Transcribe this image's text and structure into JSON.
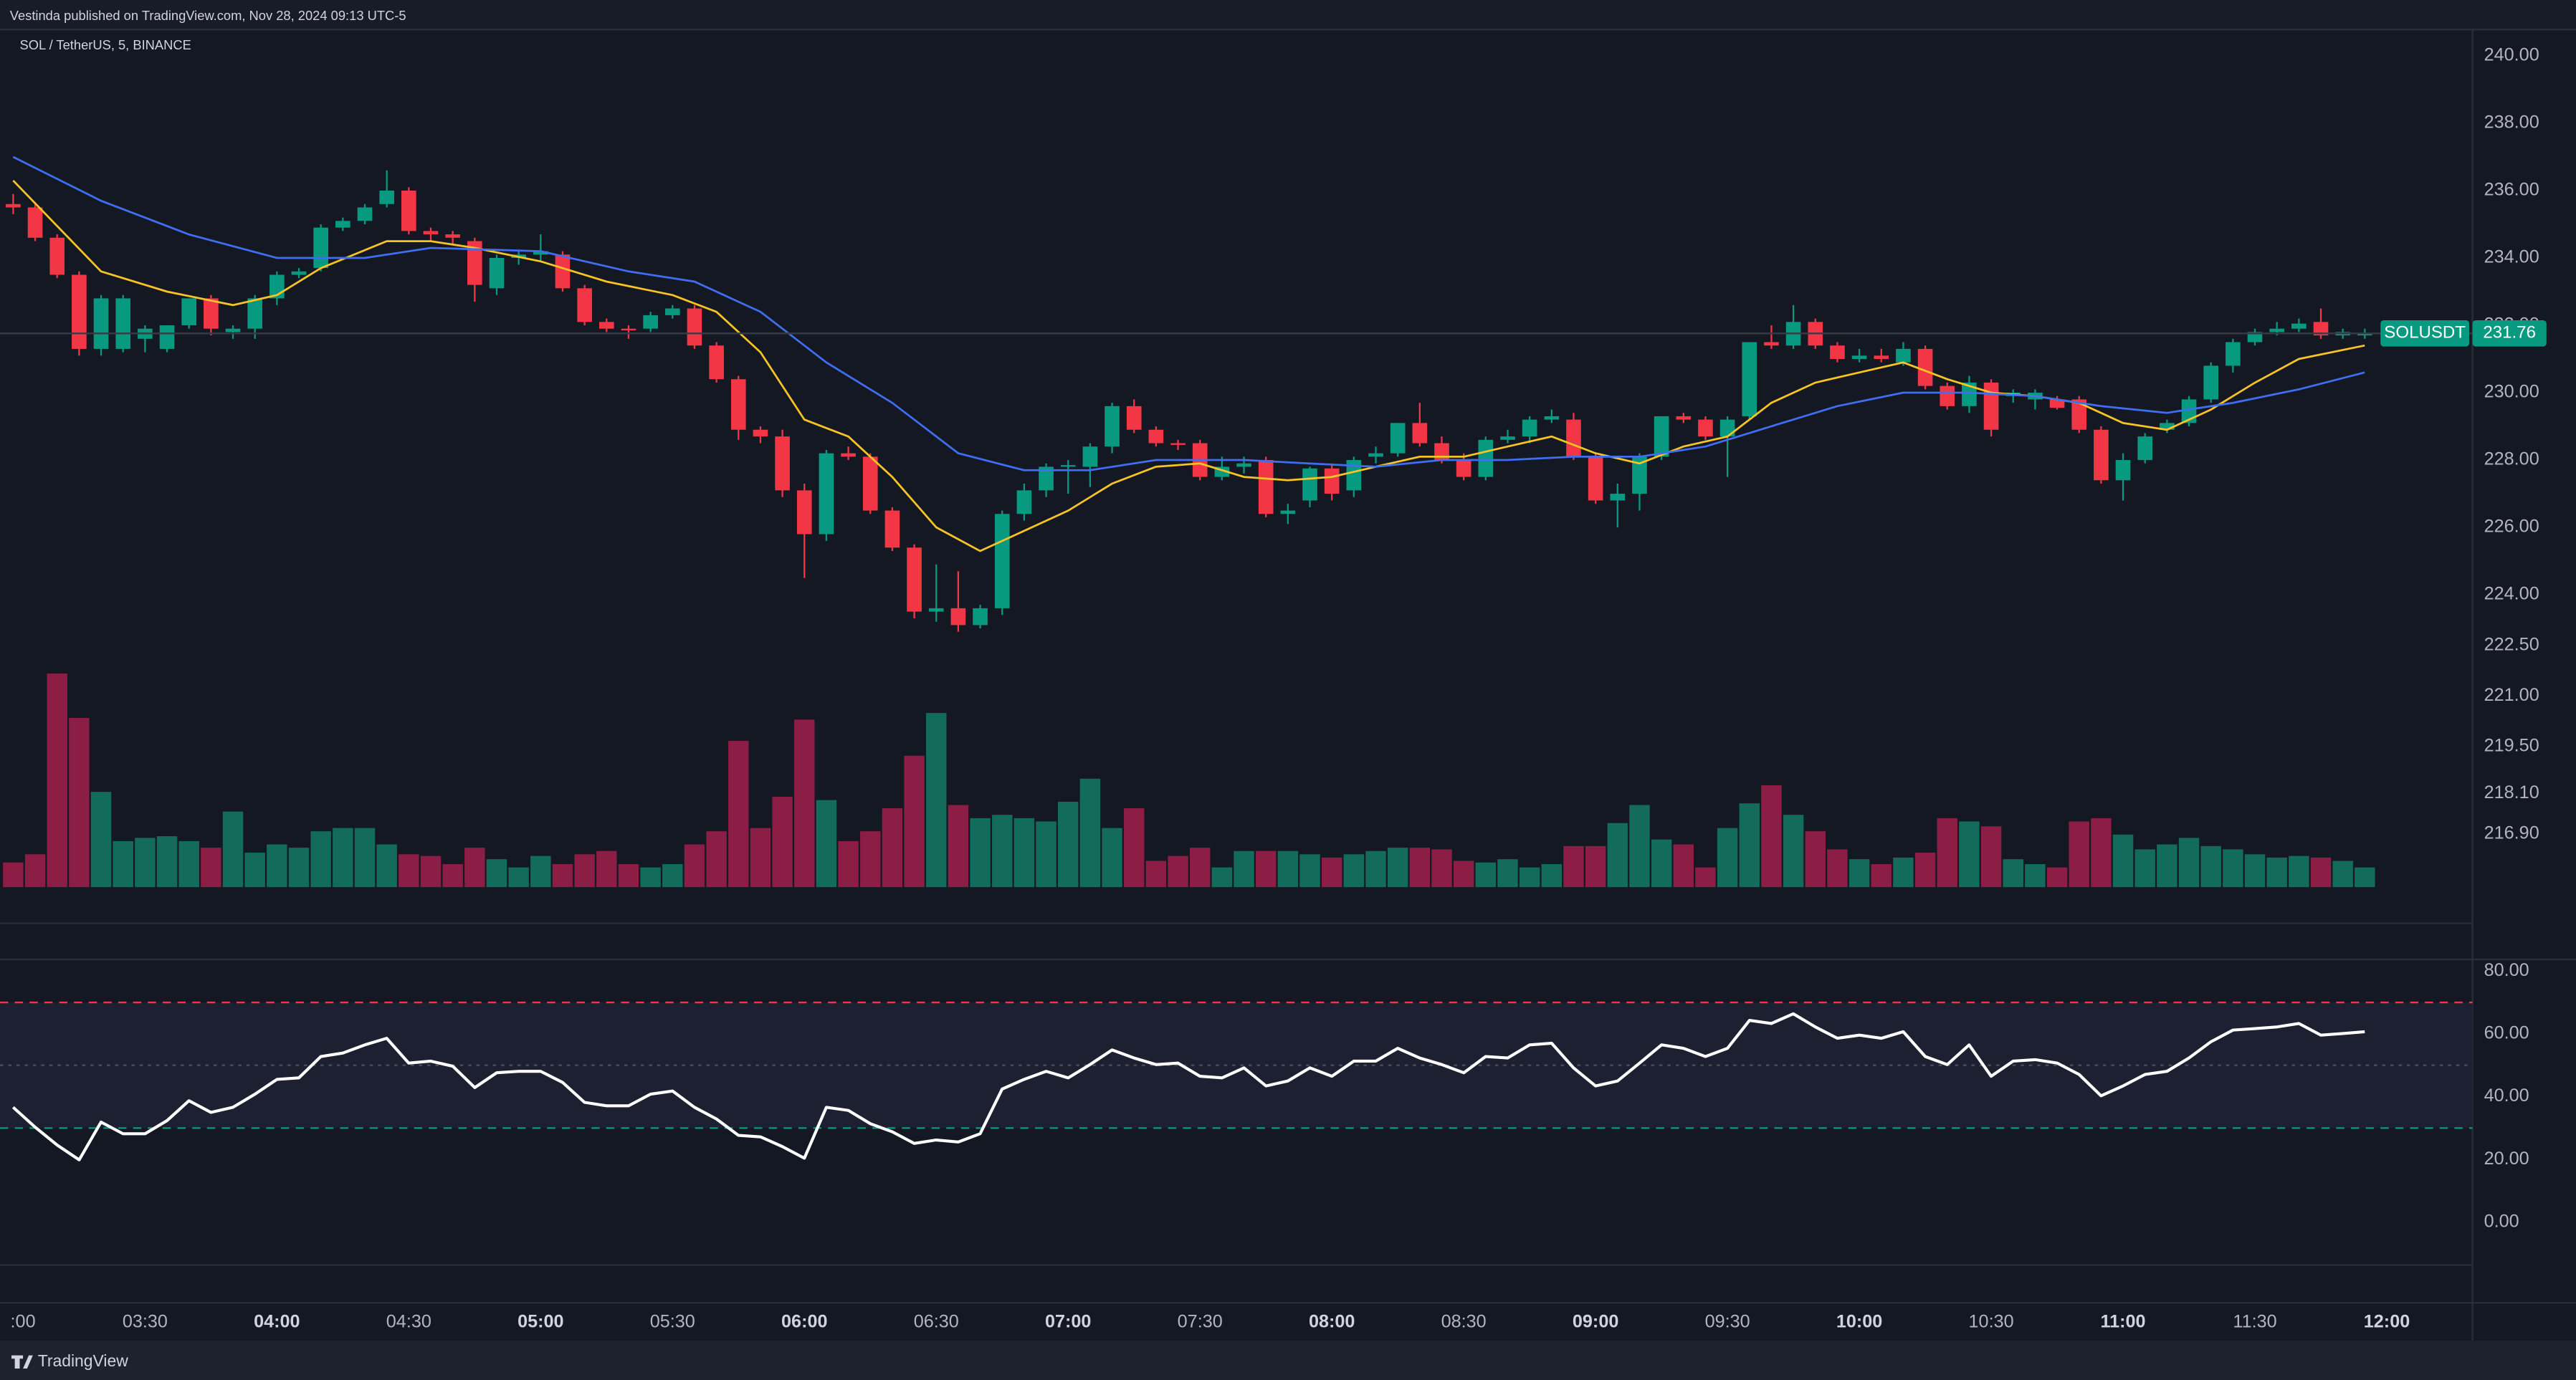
{
  "header": {
    "text": "Vestinda published on TradingView.com, Nov 28, 2024 09:13 UTC-5"
  },
  "footer": {
    "brand": "TradingView"
  },
  "chart_data": [
    {
      "type": "candlestick",
      "title": "SOL / TetherUS, 5, BINANCE",
      "symbol": "SOLUSDT",
      "last_price": 231.76,
      "up_color": "#089981",
      "down_color": "#f23645",
      "volume_up_color": "#136b5b",
      "volume_down_color": "#8c1d45",
      "ylim": [
        215.32,
        240.78
      ],
      "yticks": [
        {
          "value": 240,
          "label": "240.00"
        },
        {
          "value": 238,
          "label": "238.00"
        },
        {
          "value": 236,
          "label": "236.00"
        },
        {
          "value": 234,
          "label": "234.00"
        },
        {
          "value": 232,
          "label": "232.00"
        },
        {
          "value": 230,
          "label": "230.00"
        },
        {
          "value": 228,
          "label": "228.00"
        },
        {
          "value": 226,
          "label": "226.00"
        },
        {
          "value": 224,
          "label": "224.00"
        },
        {
          "value": 222.5,
          "label": "222.50"
        },
        {
          "value": 221,
          "label": "221.00"
        },
        {
          "value": 219.5,
          "label": "219.50"
        },
        {
          "value": 218.1,
          "label": "218.10"
        },
        {
          "value": 216.9,
          "label": "216.90"
        }
      ],
      "grid": false,
      "candles": [
        [
          235.6,
          235.9,
          235.3,
          235.5
        ],
        [
          235.5,
          235.6,
          234.5,
          234.6
        ],
        [
          234.6,
          234.7,
          233.4,
          233.5
        ],
        [
          233.5,
          233.6,
          231.1,
          231.3
        ],
        [
          231.3,
          232.9,
          231.1,
          232.8
        ],
        [
          231.3,
          232.9,
          231.2,
          232.8
        ],
        [
          231.6,
          232.0,
          231.2,
          231.9
        ],
        [
          231.3,
          232.0,
          231.2,
          232.0
        ],
        [
          232.0,
          232.8,
          231.9,
          232.8
        ],
        [
          232.8,
          232.9,
          231.7,
          231.9
        ],
        [
          231.8,
          232.0,
          231.6,
          231.9
        ],
        [
          231.9,
          232.9,
          231.6,
          232.8
        ],
        [
          232.8,
          233.6,
          232.6,
          233.5
        ],
        [
          233.5,
          233.7,
          233.4,
          233.6
        ],
        [
          233.7,
          235.0,
          233.6,
          234.9
        ],
        [
          234.9,
          235.2,
          234.8,
          235.1
        ],
        [
          235.1,
          235.6,
          235.0,
          235.5
        ],
        [
          235.6,
          236.6,
          235.5,
          236.0
        ],
        [
          236.0,
          236.1,
          234.7,
          234.8
        ],
        [
          234.8,
          234.9,
          234.5,
          234.7
        ],
        [
          234.7,
          234.8,
          234.4,
          234.6
        ],
        [
          234.5,
          234.6,
          232.7,
          233.2
        ],
        [
          233.1,
          234.1,
          232.9,
          234.0
        ],
        [
          234.0,
          234.2,
          233.8,
          234.1
        ],
        [
          234.1,
          234.7,
          233.9,
          234.2
        ],
        [
          234.1,
          234.2,
          233.0,
          233.1
        ],
        [
          233.1,
          233.2,
          232.0,
          232.1
        ],
        [
          232.1,
          232.2,
          231.8,
          231.9
        ],
        [
          231.9,
          232.0,
          231.6,
          231.85
        ],
        [
          231.9,
          232.4,
          231.8,
          232.3
        ],
        [
          232.3,
          232.6,
          232.2,
          232.5
        ],
        [
          232.5,
          232.6,
          231.3,
          231.4
        ],
        [
          231.4,
          231.5,
          230.3,
          230.4
        ],
        [
          230.4,
          230.5,
          228.6,
          228.9
        ],
        [
          228.9,
          229.0,
          228.5,
          228.7
        ],
        [
          228.7,
          228.9,
          226.9,
          227.1
        ],
        [
          227.1,
          227.3,
          224.5,
          225.8
        ],
        [
          225.8,
          228.3,
          225.6,
          228.2
        ],
        [
          228.2,
          228.4,
          228.0,
          228.1
        ],
        [
          228.1,
          228.2,
          226.4,
          226.5
        ],
        [
          226.5,
          226.6,
          225.3,
          225.4
        ],
        [
          225.4,
          225.5,
          223.3,
          223.5
        ],
        [
          223.5,
          224.9,
          223.2,
          223.6
        ],
        [
          223.6,
          224.7,
          222.9,
          223.1
        ],
        [
          223.1,
          223.7,
          223.0,
          223.6
        ],
        [
          223.6,
          226.5,
          223.4,
          226.4
        ],
        [
          226.4,
          227.3,
          226.2,
          227.1
        ],
        [
          227.1,
          227.9,
          226.9,
          227.8
        ],
        [
          227.8,
          228.0,
          227.0,
          227.85
        ],
        [
          227.8,
          228.5,
          227.2,
          228.4
        ],
        [
          228.4,
          229.7,
          228.2,
          229.6
        ],
        [
          229.6,
          229.8,
          228.8,
          228.9
        ],
        [
          228.9,
          229.0,
          228.4,
          228.5
        ],
        [
          228.5,
          228.6,
          228.3,
          228.45
        ],
        [
          228.5,
          228.6,
          227.4,
          227.5
        ],
        [
          227.5,
          228.1,
          227.4,
          227.8
        ],
        [
          227.8,
          228.1,
          227.6,
          227.9
        ],
        [
          228.0,
          228.1,
          226.3,
          226.4
        ],
        [
          226.4,
          226.7,
          226.1,
          226.5
        ],
        [
          226.8,
          227.8,
          226.6,
          227.75
        ],
        [
          227.75,
          227.9,
          226.8,
          227.0
        ],
        [
          227.1,
          228.1,
          226.9,
          228.0
        ],
        [
          228.1,
          228.4,
          227.9,
          228.2
        ],
        [
          228.2,
          229.1,
          228.1,
          229.1
        ],
        [
          229.1,
          229.7,
          228.4,
          228.5
        ],
        [
          228.5,
          228.7,
          227.9,
          228.0
        ],
        [
          228.0,
          228.2,
          227.4,
          227.5
        ],
        [
          227.5,
          228.7,
          227.4,
          228.6
        ],
        [
          228.6,
          228.9,
          228.5,
          228.7
        ],
        [
          228.7,
          229.3,
          228.5,
          229.2
        ],
        [
          229.2,
          229.5,
          229.1,
          229.3
        ],
        [
          229.2,
          229.4,
          228.0,
          228.1
        ],
        [
          228.1,
          228.2,
          226.7,
          226.8
        ],
        [
          226.8,
          227.3,
          226.0,
          227.0
        ],
        [
          227.0,
          228.2,
          226.5,
          228.1
        ],
        [
          228.1,
          229.3,
          228.0,
          229.3
        ],
        [
          229.3,
          229.4,
          229.1,
          229.2
        ],
        [
          229.2,
          229.3,
          228.6,
          228.7
        ],
        [
          228.7,
          229.3,
          227.5,
          229.2
        ],
        [
          229.3,
          231.5,
          229.2,
          231.5
        ],
        [
          231.5,
          232.0,
          231.3,
          231.4
        ],
        [
          231.4,
          232.6,
          231.3,
          232.1
        ],
        [
          232.1,
          232.2,
          231.3,
          231.4
        ],
        [
          231.4,
          231.5,
          230.9,
          231.0
        ],
        [
          231.0,
          231.3,
          230.9,
          231.1
        ],
        [
          231.1,
          231.3,
          230.9,
          231.0
        ],
        [
          230.9,
          231.5,
          230.8,
          231.3
        ],
        [
          231.3,
          231.4,
          230.1,
          230.2
        ],
        [
          230.2,
          230.3,
          229.5,
          229.6
        ],
        [
          229.6,
          230.5,
          229.4,
          230.3
        ],
        [
          230.3,
          230.4,
          228.7,
          228.9
        ],
        [
          229.9,
          230.1,
          229.7,
          230.0
        ],
        [
          229.8,
          230.1,
          229.5,
          230.0
        ],
        [
          229.8,
          229.9,
          229.5,
          229.55
        ],
        [
          229.8,
          229.9,
          228.8,
          228.9
        ],
        [
          228.9,
          229.0,
          227.3,
          227.4
        ],
        [
          227.4,
          228.2,
          226.8,
          228.0
        ],
        [
          228.0,
          228.8,
          227.9,
          228.7
        ],
        [
          228.9,
          229.2,
          228.8,
          229.1
        ],
        [
          229.1,
          229.9,
          229.0,
          229.8
        ],
        [
          229.8,
          230.9,
          229.7,
          230.8
        ],
        [
          230.8,
          231.6,
          230.6,
          231.5
        ],
        [
          231.5,
          231.9,
          231.4,
          231.8
        ],
        [
          231.8,
          232.1,
          231.7,
          231.9
        ],
        [
          231.9,
          232.2,
          231.8,
          232.05
        ],
        [
          232.1,
          232.5,
          231.6,
          231.7
        ],
        [
          231.7,
          231.9,
          231.6,
          231.8
        ],
        [
          231.7,
          231.9,
          231.6,
          231.76
        ]
      ],
      "volume": [
        15,
        20,
        130,
        103,
        58,
        28,
        30,
        31,
        28,
        24,
        46,
        21,
        26,
        24,
        34,
        36,
        36,
        26,
        20,
        19,
        14,
        24,
        17,
        12,
        19,
        14,
        20,
        22,
        14,
        12,
        14,
        26,
        34,
        89,
        36,
        55,
        102,
        53,
        28,
        34,
        48,
        80,
        106,
        50,
        42,
        44,
        42,
        40,
        52,
        66,
        36,
        48,
        16,
        19,
        24,
        12,
        22,
        22,
        22,
        20,
        18,
        20,
        22,
        24,
        24,
        23,
        16,
        15,
        17,
        12,
        14,
        25,
        25,
        39,
        50,
        29,
        26,
        12,
        36,
        51,
        62,
        44,
        34,
        23,
        17,
        14,
        18,
        21,
        42,
        40,
        37,
        17,
        14,
        12,
        40,
        42,
        32,
        23,
        26,
        30,
        25,
        23,
        20,
        18,
        19,
        18,
        16,
        12
      ],
      "series": [
        {
          "name": "MA fast",
          "color": "#f7c325",
          "x": [
            0,
            4,
            7,
            10,
            12,
            14,
            17,
            19,
            21,
            24,
            27,
            30,
            32,
            34,
            36,
            38,
            40,
            42,
            44,
            46,
            48,
            50,
            52,
            54,
            56,
            58,
            60,
            62,
            64,
            66,
            68,
            70,
            72,
            74,
            76,
            78,
            80,
            82,
            84,
            86,
            88,
            90,
            92,
            94,
            96,
            98,
            100,
            102,
            104,
            107
          ],
          "values": [
            236.3,
            233.6,
            233.0,
            232.6,
            232.9,
            233.7,
            234.5,
            234.5,
            234.3,
            233.9,
            233.3,
            232.9,
            232.4,
            231.2,
            229.2,
            228.7,
            227.5,
            226.0,
            225.3,
            225.9,
            226.5,
            227.3,
            227.8,
            227.9,
            227.5,
            227.4,
            227.5,
            227.8,
            228.1,
            228.1,
            228.4,
            228.7,
            228.2,
            227.9,
            228.4,
            228.7,
            229.7,
            230.3,
            230.6,
            230.9,
            230.4,
            230.0,
            229.9,
            229.7,
            229.1,
            228.9,
            229.5,
            230.3,
            231.0,
            231.4
          ]
        },
        {
          "name": "MA slow",
          "color": "#3f6ef0",
          "x": [
            0,
            4,
            8,
            12,
            16,
            19,
            24,
            28,
            31,
            34,
            37,
            40,
            43,
            46,
            49,
            52,
            56,
            59,
            62,
            65,
            68,
            71,
            74,
            77,
            80,
            83,
            86,
            89,
            92,
            95,
            98,
            101,
            104,
            107
          ],
          "values": [
            237.0,
            235.7,
            234.7,
            234.0,
            234.0,
            234.3,
            234.2,
            233.6,
            233.3,
            232.4,
            230.9,
            229.7,
            228.2,
            227.7,
            227.7,
            228.0,
            228.0,
            227.9,
            227.8,
            228.0,
            228.0,
            228.1,
            228.1,
            228.4,
            229.0,
            229.6,
            230.0,
            230.0,
            229.9,
            229.6,
            229.4,
            229.7,
            230.1,
            230.6
          ]
        }
      ]
    },
    {
      "type": "line",
      "color": "#ffffff",
      "ylim": [
        -13.6,
        83.7
      ],
      "yticks": [
        {
          "value": 80,
          "label": "80.00"
        },
        {
          "value": 60,
          "label": "60.00"
        },
        {
          "value": 40,
          "label": "40.00"
        },
        {
          "value": 20,
          "label": "20.00"
        },
        {
          "value": 0,
          "label": "0.00"
        }
      ],
      "upper_band": 70,
      "upper_color": "#f23645",
      "lower_band": 30,
      "lower_color": "#089981",
      "middle": 50,
      "xlim": [
        -0.6,
        111.9
      ],
      "xticks": [
        {
          "value": 0,
          "label": ":00"
        },
        {
          "value": 6,
          "label": "03:30"
        },
        {
          "value": 12,
          "label": "04:00"
        },
        {
          "value": 18,
          "label": "04:30"
        },
        {
          "value": 24,
          "label": "05:00"
        },
        {
          "value": 30,
          "label": "05:30"
        },
        {
          "value": 36,
          "label": "06:00"
        },
        {
          "value": 42,
          "label": "06:30"
        },
        {
          "value": 48,
          "label": "07:00"
        },
        {
          "value": 54,
          "label": "07:30"
        },
        {
          "value": 60,
          "label": "08:00"
        },
        {
          "value": 66,
          "label": "08:30"
        },
        {
          "value": 72,
          "label": "09:00"
        },
        {
          "value": 78,
          "label": "09:30"
        },
        {
          "value": 84,
          "label": "10:00"
        },
        {
          "value": 90,
          "label": "10:30"
        },
        {
          "value": 96,
          "label": "11:00"
        },
        {
          "value": 102,
          "label": "11:30"
        },
        {
          "value": 108,
          "label": "12:00"
        }
      ],
      "values": [
        36.6,
        30.3,
        24.6,
        19.9,
        31.9,
        28.2,
        28.2,
        32.4,
        38.7,
        35.0,
        36.6,
        40.8,
        45.5,
        46.0,
        52.8,
        53.9,
        56.5,
        58.6,
        50.7,
        51.3,
        49.7,
        42.9,
        47.6,
        48.1,
        48.1,
        44.5,
        38.2,
        37.1,
        37.1,
        40.8,
        41.8,
        36.6,
        32.9,
        27.7,
        27.2,
        24.1,
        20.4,
        36.6,
        35.6,
        31.4,
        28.8,
        25.1,
        26.2,
        25.6,
        28.2,
        42.4,
        45.5,
        48.1,
        46.0,
        50.2,
        54.9,
        52.3,
        50.2,
        50.7,
        46.5,
        46.0,
        49.2,
        43.4,
        45.0,
        49.2,
        46.5,
        51.3,
        51.3,
        55.4,
        52.3,
        50.2,
        47.6,
        52.8,
        52.3,
        56.5,
        57.0,
        49.2,
        43.4,
        45.0,
        50.7,
        56.5,
        55.4,
        52.8,
        55.4,
        64.3,
        63.3,
        66.4,
        62.2,
        58.6,
        59.6,
        58.6,
        60.7,
        52.8,
        50.2,
        56.5,
        46.5,
        51.3,
        51.8,
        50.7,
        47.1,
        40.3,
        43.4,
        47.1,
        48.1,
        52.3,
        57.5,
        61.2,
        61.7,
        62.2,
        63.3,
        59.6,
        60.1,
        60.7
      ]
    }
  ]
}
